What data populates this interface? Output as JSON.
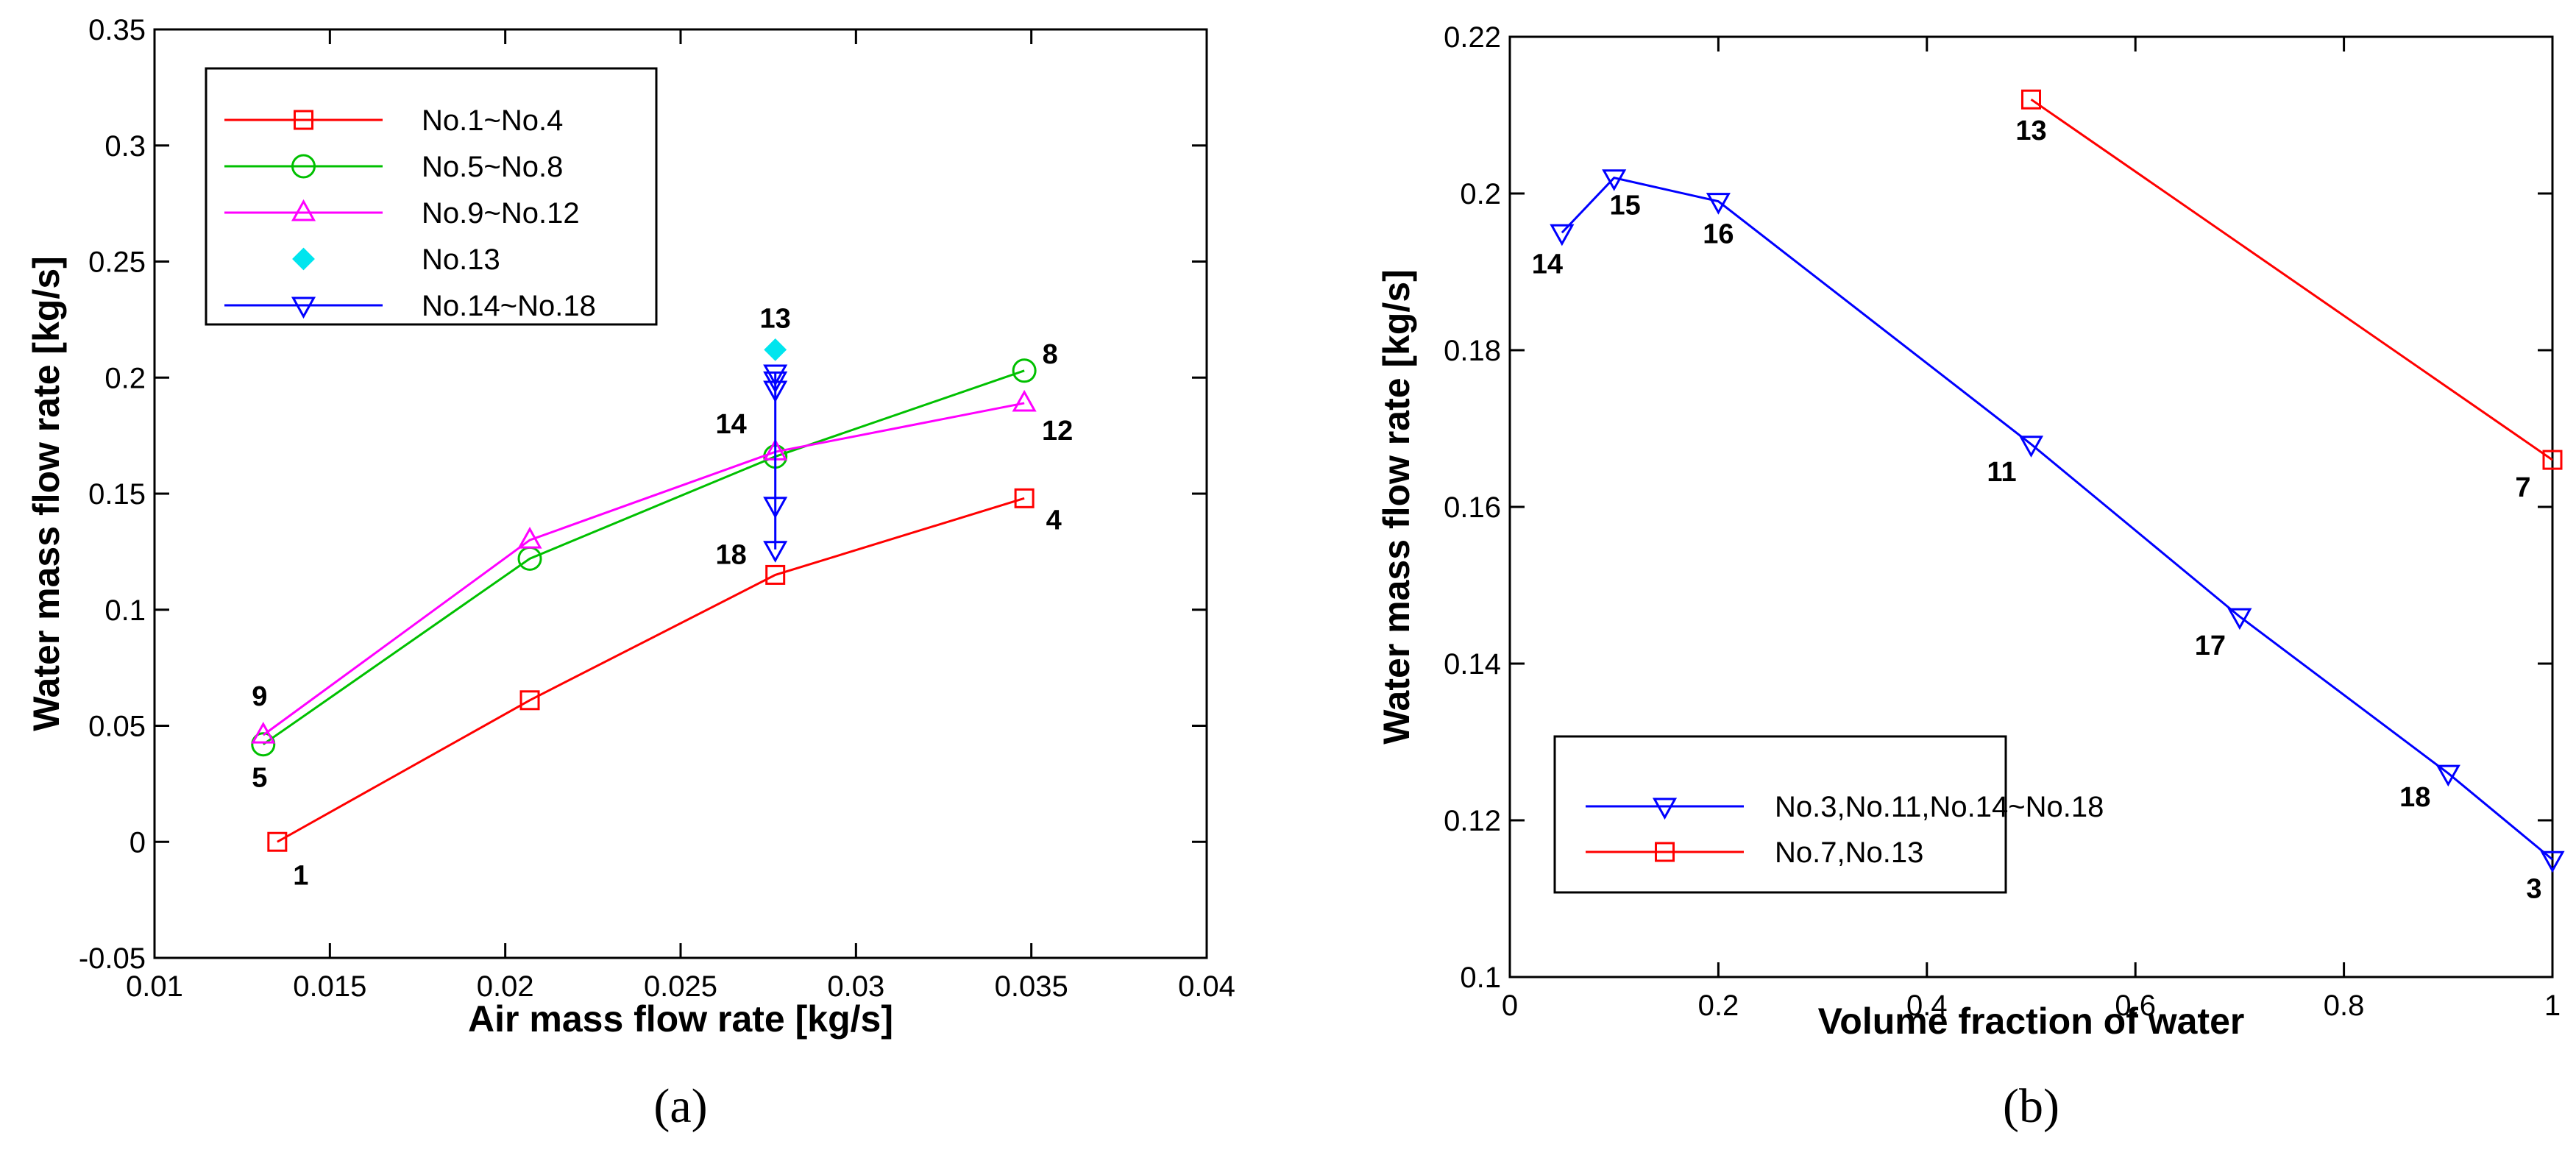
{
  "chart_data": [
    {
      "type": "line",
      "panel_label": "(a)",
      "xlabel": "Air mass flow rate [kg/s]",
      "ylabel": "Water mass flow rate [kg/s]",
      "xlim": [
        0.01,
        0.04
      ],
      "ylim": [
        -0.05,
        0.35
      ],
      "xticks": [
        0.01,
        0.015,
        0.02,
        0.025,
        0.03,
        0.035,
        0.04
      ],
      "yticks": [
        -0.05,
        0,
        0.05,
        0.1,
        0.15,
        0.2,
        0.25,
        0.3,
        0.35
      ],
      "xtick_labels": [
        "0.01",
        "0.015",
        "0.02",
        "0.025",
        "0.03",
        "0.035",
        "0.04"
      ],
      "ytick_labels": [
        "-0.05",
        "0",
        "0.05",
        "0.1",
        "0.15",
        "0.2",
        "0.25",
        "0.3",
        "0.35"
      ],
      "grid": false,
      "legend_position": "top-left",
      "series": [
        {
          "name": "No.1~No.4",
          "marker": "square",
          "color": "#ff0000",
          "line": true,
          "x": [
            0.0135,
            0.0207,
            0.0277,
            0.0348
          ],
          "y": [
            0.0,
            0.061,
            0.115,
            0.148
          ]
        },
        {
          "name": "No.5~No.8",
          "marker": "circle",
          "color": "#00c000",
          "line": true,
          "x": [
            0.0131,
            0.0207,
            0.0277,
            0.0348
          ],
          "y": [
            0.042,
            0.122,
            0.166,
            0.203
          ]
        },
        {
          "name": "No.9~No.12",
          "marker": "triangle-up",
          "color": "#ff00ff",
          "line": true,
          "x": [
            0.0131,
            0.0207,
            0.0277,
            0.0348
          ],
          "y": [
            0.046,
            0.13,
            0.168,
            0.189
          ]
        },
        {
          "name": "No.13",
          "marker": "diamond-filled",
          "color": "#00e5ee",
          "line": false,
          "x": [
            0.0277
          ],
          "y": [
            0.212
          ]
        },
        {
          "name": "No.14~No.18",
          "marker": "triangle-down",
          "color": "#0000ff",
          "line": true,
          "x": [
            0.0277,
            0.0277,
            0.0277,
            0.0277,
            0.0277
          ],
          "y": [
            0.195,
            0.202,
            0.199,
            0.145,
            0.126
          ]
        }
      ],
      "annotations": [
        {
          "text": "1",
          "x": 0.0135,
          "y": 0.0
        },
        {
          "text": "4",
          "x": 0.0348,
          "y": 0.148
        },
        {
          "text": "5",
          "x": 0.0131,
          "y": 0.042
        },
        {
          "text": "8",
          "x": 0.0348,
          "y": 0.203
        },
        {
          "text": "9",
          "x": 0.0131,
          "y": 0.046
        },
        {
          "text": "12",
          "x": 0.0348,
          "y": 0.189
        },
        {
          "text": "13",
          "x": 0.0277,
          "y": 0.212
        },
        {
          "text": "14",
          "x": 0.0277,
          "y": 0.195
        },
        {
          "text": "18",
          "x": 0.0277,
          "y": 0.126
        }
      ]
    },
    {
      "type": "line",
      "panel_label": "(b)",
      "xlabel": "Volume fraction of water",
      "ylabel": "Water mass flow rate [kg/s]",
      "xlim": [
        0,
        1
      ],
      "ylim": [
        0.1,
        0.22
      ],
      "xticks": [
        0,
        0.2,
        0.4,
        0.6,
        0.8,
        1
      ],
      "yticks": [
        0.1,
        0.12,
        0.14,
        0.16,
        0.18,
        0.2,
        0.22
      ],
      "xtick_labels": [
        "0",
        "0.2",
        "0.4",
        "0.6",
        "0.8",
        "1"
      ],
      "ytick_labels": [
        "0.1",
        "0.12",
        "0.14",
        "0.16",
        "0.18",
        "0.2",
        "0.22"
      ],
      "grid": false,
      "legend_position": "bottom-left",
      "series": [
        {
          "name": "No.3,No.11,No.14~No.18",
          "marker": "triangle-down",
          "color": "#0000ff",
          "line": true,
          "x": [
            0.05,
            0.1,
            0.2,
            0.5,
            0.7,
            0.9,
            1.0
          ],
          "y": [
            0.195,
            0.202,
            0.199,
            0.168,
            0.146,
            0.126,
            0.115
          ]
        },
        {
          "name": "No.7,No.13",
          "marker": "square",
          "color": "#ff0000",
          "line": true,
          "x": [
            0.5,
            1.0
          ],
          "y": [
            0.212,
            0.166
          ]
        }
      ],
      "annotations": [
        {
          "text": "14",
          "x": 0.05,
          "y": 0.195
        },
        {
          "text": "15",
          "x": 0.1,
          "y": 0.202
        },
        {
          "text": "16",
          "x": 0.2,
          "y": 0.199
        },
        {
          "text": "11",
          "x": 0.5,
          "y": 0.168
        },
        {
          "text": "17",
          "x": 0.7,
          "y": 0.146
        },
        {
          "text": "18",
          "x": 0.9,
          "y": 0.126
        },
        {
          "text": "3",
          "x": 1.0,
          "y": 0.115
        },
        {
          "text": "13",
          "x": 0.5,
          "y": 0.212
        },
        {
          "text": "7",
          "x": 1.0,
          "y": 0.166
        }
      ]
    }
  ]
}
